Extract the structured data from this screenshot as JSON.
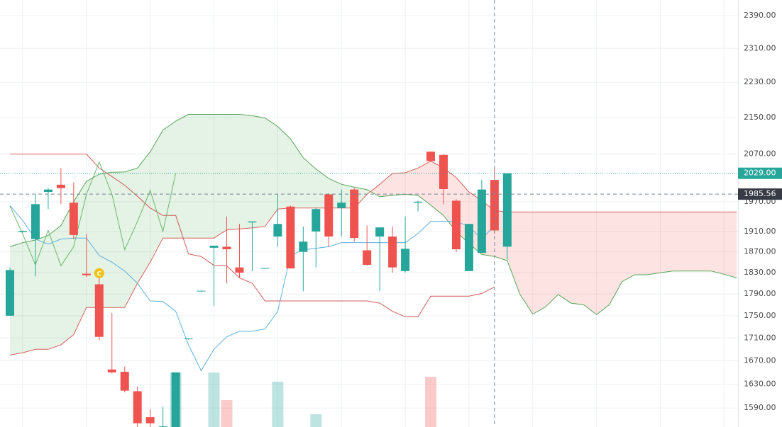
{
  "chart_data": {
    "type": "candlestick",
    "log_scale": true,
    "grid": true,
    "ylim": [
      1559,
      2429
    ],
    "yticks": [
      {
        "value": 2390,
        "label": "2390.00"
      },
      {
        "value": 2310,
        "label": "2310.00"
      },
      {
        "value": 2230,
        "label": "2230.00"
      },
      {
        "value": 2150,
        "label": "2150.00"
      },
      {
        "value": 2070,
        "label": "2070.00"
      },
      {
        "value": 1970,
        "label": "1970.00"
      },
      {
        "value": 1910,
        "label": "1910.00"
      },
      {
        "value": 1870,
        "label": "1870.00"
      },
      {
        "value": 1830,
        "label": "1830.00"
      },
      {
        "value": 1790,
        "label": "1790.00"
      },
      {
        "value": 1750,
        "label": "1750.00"
      },
      {
        "value": 1710,
        "label": "1710.00"
      },
      {
        "value": 1670,
        "label": "1670.00"
      },
      {
        "value": 1630,
        "label": "1630.00"
      },
      {
        "value": 1590,
        "label": "1590.00"
      }
    ],
    "categories": [
      null,
      null,
      null,
      null,
      null,
      null,
      null,
      null,
      null,
      null,
      null,
      null,
      null,
      null,
      null,
      null,
      null,
      null,
      null,
      null,
      null,
      null,
      null,
      null,
      null,
      null,
      null,
      null,
      null,
      null,
      null,
      null,
      null,
      null,
      null,
      null,
      null,
      null,
      null,
      null,
      null,
      null,
      null,
      null,
      null,
      null,
      null,
      null,
      null,
      null,
      null,
      null,
      null,
      null,
      null,
      null,
      null,
      null
    ],
    "up_color": "#26a69a",
    "down_color": "#ef5350",
    "open": [
      1750,
      1909,
      1895,
      1990,
      2005,
      1968,
      1828,
      1808,
      1655,
      1651,
      1618,
      1575,
      1555,
      1558,
      1708,
      1795,
      1878,
      1880,
      1840,
      1928,
      1838,
      1900,
      1960,
      1870,
      1910,
      1985,
      1957,
      1995,
      1873,
      1900,
      1900,
      1833,
      1968,
      2075,
      2068,
      1972,
      1833,
      1868,
      2015,
      1880,
      null,
      null,
      null,
      null,
      null,
      null,
      null,
      null,
      null,
      null,
      null,
      null,
      null,
      null,
      null,
      null,
      null,
      null
    ],
    "high": [
      1840,
      1912,
      1985,
      1998,
      2040,
      2010,
      1905,
      1820,
      1755,
      1660,
      1626,
      1588,
      1592,
      1650,
      1709,
      1796,
      1882,
      1940,
      1925,
      1930,
      1839,
      1985,
      1962,
      1920,
      1958,
      1987,
      1995,
      1998,
      1922,
      1918,
      1920,
      1940,
      1972,
      2076,
      2070,
      1975,
      1925,
      2015,
      2040,
      2029,
      null,
      null,
      null,
      null,
      null,
      null,
      null,
      null,
      null,
      null,
      null,
      null,
      null,
      null,
      null,
      null,
      null,
      null
    ],
    "low": [
      1750,
      1908,
      1823,
      1955,
      1965,
      1895,
      1822,
      1706,
      1648,
      1616,
      1558,
      1555,
      1555,
      1558,
      1707,
      1794,
      1768,
      1810,
      1820,
      1833,
      1837,
      1880,
      1838,
      1795,
      1840,
      1880,
      1900,
      1890,
      1843,
      1795,
      1830,
      1830,
      1950,
      2055,
      1965,
      1870,
      1833,
      1868,
      1905,
      1855,
      null,
      null,
      null,
      null,
      null,
      null,
      null,
      null,
      null,
      null,
      null,
      null,
      null,
      null,
      null,
      null,
      null,
      null
    ],
    "close": [
      1835,
      1911,
      1965,
      1995,
      1998,
      1903,
      1825,
      1712,
      1650,
      1619,
      1565,
      1565,
      1560,
      1650,
      1709,
      1796,
      1882,
      1875,
      1830,
      1930,
      1839,
      1925,
      1838,
      1890,
      1955,
      1900,
      1968,
      1897,
      1845,
      1918,
      1840,
      1876,
      1970,
      2055,
      1996,
      1875,
      1925,
      1995,
      1912,
      2029,
      null,
      null,
      null,
      null,
      null,
      null,
      null,
      null,
      null,
      null,
      null,
      null,
      null,
      null,
      null,
      null,
      null,
      null
    ],
    "volume": [
      null,
      null,
      null,
      null,
      null,
      null,
      null,
      null,
      null,
      null,
      null,
      null,
      null,
      77,
      null,
      null,
      77,
      38,
      null,
      null,
      null,
      64,
      null,
      null,
      18,
      null,
      null,
      null,
      null,
      null,
      null,
      null,
      null,
      71,
      null,
      null,
      null,
      null,
      null,
      null,
      null,
      null,
      null,
      null,
      null,
      null,
      null,
      null,
      null,
      null,
      null,
      null,
      null,
      null,
      null,
      null,
      null,
      null
    ],
    "lines": [
      {
        "color": "#5fb0e0",
        "values": [
          1962,
          1932,
          1895,
          1885,
          1895,
          1897,
          1897,
          1863,
          1850,
          1833,
          1810,
          1777,
          1776,
          1758,
          1698,
          1653,
          1690,
          1712,
          1722,
          1722,
          1726,
          1758,
          1863,
          1874,
          1877,
          1880,
          1888,
          1888,
          1888,
          1888,
          1888,
          1888,
          1906,
          1930,
          1930,
          1930,
          1920,
          1895,
          1922,
          null,
          null,
          null,
          null,
          null,
          null,
          null,
          null,
          null,
          null,
          null,
          null,
          null,
          null,
          null,
          null,
          null,
          null,
          null
        ]
      },
      {
        "color": "#cf5a55",
        "values": [
          2070,
          2070,
          2070,
          2070,
          2070,
          2070,
          2070,
          2040,
          2022,
          2004,
          1981,
          1957,
          1942,
          1942,
          1866,
          1861,
          1844,
          1843,
          1820,
          1810,
          1777,
          1777,
          1777,
          1777,
          1777,
          1777,
          1777,
          1777,
          1777,
          1773,
          1758,
          1748,
          1748,
          1786,
          1786,
          1786,
          1786,
          1791,
          1803,
          null,
          null,
          null,
          null,
          null,
          null,
          null,
          null,
          null,
          null,
          null,
          null,
          null,
          null,
          null,
          null,
          null,
          null,
          null
        ]
      },
      {
        "color": "#6ab86a",
        "values": [
          1961,
          1905,
          1845,
          1912,
          1843,
          1880,
          1985,
          2053,
          1985,
          1874,
          1930,
          1993,
          1910,
          2029,
          null,
          null,
          null,
          null,
          null,
          null,
          null,
          null,
          null,
          null,
          null,
          null,
          null,
          null,
          null,
          null,
          null,
          null,
          null,
          null,
          null,
          null,
          null,
          null,
          null,
          null,
          null,
          null,
          null,
          null,
          null,
          null,
          null,
          null,
          null,
          null,
          null,
          null,
          null,
          null,
          null,
          null,
          null,
          null
        ]
      }
    ],
    "span_a": {
      "color": "#5aa65a",
      "values": [
        1880,
        1888,
        1893,
        1902,
        1922,
        1970,
        2012,
        2027,
        2031,
        2032,
        2040,
        2075,
        2122,
        2142,
        2157,
        2157,
        2157,
        2157,
        2157,
        2154,
        2149,
        2130,
        2103,
        2062,
        2038,
        2018,
        2006,
        2000,
        1995,
        1980,
        1983,
        1985,
        1983,
        1963,
        1942,
        1910,
        1886,
        1865,
        1861,
        1853,
        1789,
        1753,
        1766,
        1789,
        1773,
        1770,
        1752,
        1770,
        1813,
        1826,
        1826,
        1830,
        1833,
        1833,
        1833,
        1833,
        1827,
        1820
      ]
    },
    "span_b": {
      "color": "#d9605c",
      "values": [
        1680,
        1684,
        1690,
        1690,
        1698,
        1716,
        1765,
        1765,
        1765,
        1765,
        1810,
        1850,
        1897,
        1897,
        1897,
        1897,
        1897,
        1913,
        1915,
        1917,
        1920,
        1955,
        1957,
        1957,
        1957,
        1957,
        1957,
        1957,
        1985,
        2006,
        2029,
        2030,
        2040,
        2055,
        2040,
        2020,
        1990,
        1972,
        1952,
        1949,
        1949,
        1949,
        1949,
        1949,
        1949,
        1949,
        1949,
        1949,
        1949,
        1949,
        1949,
        1949,
        1949,
        1949,
        1949,
        1949,
        1949,
        1949
      ]
    },
    "cloud_up_color": "rgba(76,175,80,0.15)",
    "cloud_down_color": "rgba(244,67,54,0.15)",
    "event": {
      "text": "C",
      "x": 7,
      "value": 1829,
      "color": "#f2c012"
    },
    "last_price": {
      "value": 2029,
      "label": "2029.00"
    },
    "crosshair": {
      "x": 38,
      "value": 1985.56,
      "label": "1985.56"
    }
  }
}
